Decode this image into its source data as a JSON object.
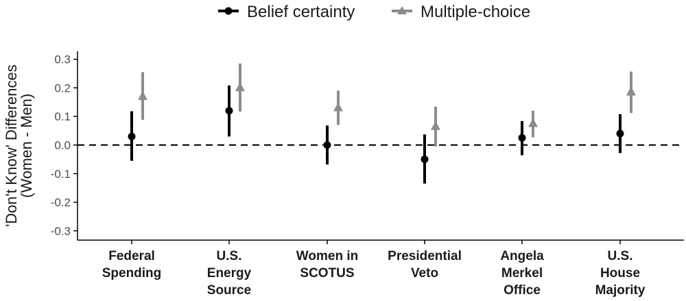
{
  "chart_data": {
    "type": "scatter",
    "title": "",
    "xlabel": "",
    "ylabel_line1": "'Don't Know' Differences",
    "ylabel_line2": "(Women - Men)",
    "ylim": [
      -0.33,
      0.33
    ],
    "yticks": [
      "0.3",
      "0.2",
      "0.1",
      "0.0",
      "-0.1",
      "-0.2",
      "-0.3"
    ],
    "ytick_values": [
      0.3,
      0.2,
      0.1,
      0.0,
      -0.1,
      -0.2,
      -0.3
    ],
    "reference_line": 0.0,
    "grid": false,
    "legend_position": "top",
    "categories": [
      [
        "Federal",
        "Spending"
      ],
      [
        "U.S.",
        "Energy",
        "Source"
      ],
      [
        "Women in",
        "SCOTUS"
      ],
      [
        "Presidential",
        "Veto"
      ],
      [
        "Angela",
        "Merkel",
        "Office"
      ],
      [
        "U.S.",
        "House",
        "Majority"
      ]
    ],
    "series": [
      {
        "name": "Belief certainty",
        "marker": "circle",
        "color": "#000000",
        "estimate": [
          0.03,
          0.12,
          0.0,
          -0.05,
          0.025,
          0.04
        ],
        "lower": [
          -0.055,
          0.03,
          -0.068,
          -0.135,
          -0.036,
          -0.028
        ],
        "upper": [
          0.118,
          0.208,
          0.068,
          0.037,
          0.084,
          0.108
        ]
      },
      {
        "name": "Multiple-choice",
        "marker": "triangle",
        "color": "#8c8c8c",
        "estimate": [
          0.17,
          0.2,
          0.13,
          0.065,
          0.075,
          0.185
        ],
        "lower": [
          0.088,
          0.117,
          0.07,
          -0.005,
          0.027,
          0.112
        ],
        "upper": [
          0.255,
          0.285,
          0.19,
          0.134,
          0.12,
          0.257
        ]
      }
    ]
  }
}
